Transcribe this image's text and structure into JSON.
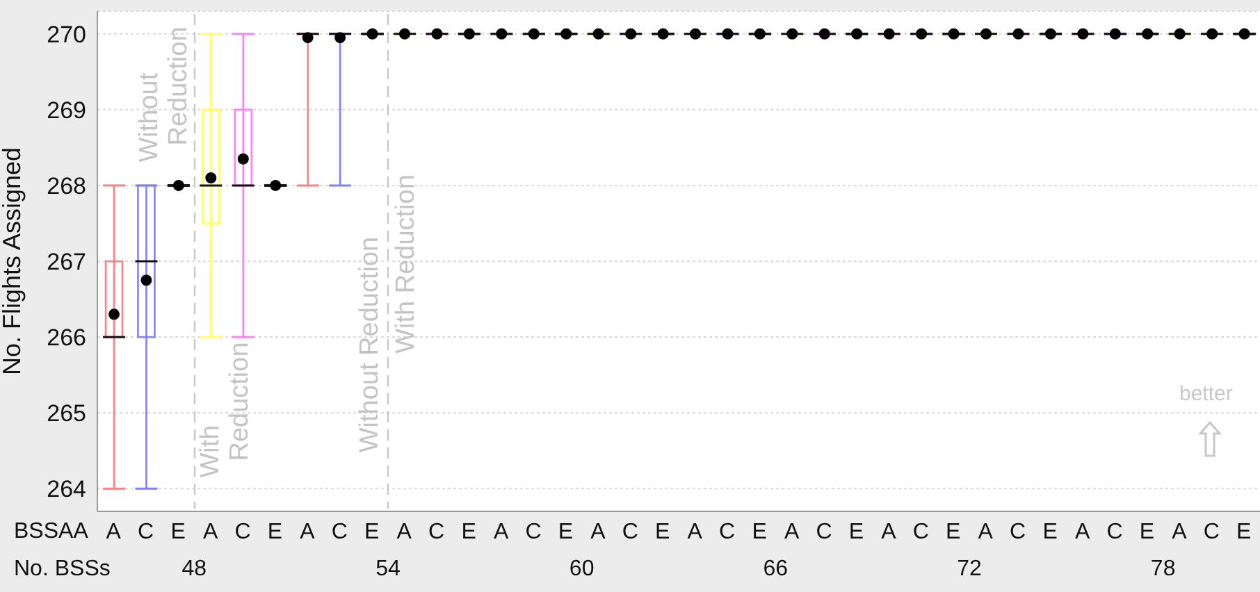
{
  "chart_data": {
    "type": "box",
    "ylabel": "No. Flights Assigned",
    "xlabel": "BSSAA",
    "categories": [
      "A",
      "C",
      "E",
      "A",
      "C",
      "E",
      "A",
      "C",
      "E",
      "A",
      "C",
      "E",
      "A",
      "C",
      "E",
      "A",
      "C",
      "E",
      "A",
      "C",
      "E",
      "A",
      "C",
      "E",
      "A",
      "C",
      "E",
      "A",
      "C",
      "E",
      "A",
      "C",
      "E",
      "A",
      "C",
      "E"
    ],
    "boxes": [
      {
        "low": 264,
        "q1": 266,
        "median": 266,
        "q3": 267,
        "high": 268,
        "mean": 266.3
      },
      {
        "low": 264,
        "q1": 266,
        "median": 267,
        "q3": 268,
        "high": 268,
        "mean": 266.75
      },
      {
        "low": 268,
        "q1": 268,
        "median": 268,
        "q3": 268,
        "high": 268,
        "mean": 268
      },
      {
        "low": 266,
        "q1": 267.5,
        "median": 268,
        "q3": 269,
        "high": 270,
        "mean": 268.1
      },
      {
        "low": 266,
        "q1": 268,
        "median": 268,
        "q3": 269,
        "high": 270,
        "mean": 268.35
      },
      {
        "low": 268,
        "q1": 268,
        "median": 268,
        "q3": 268,
        "high": 268,
        "mean": 268
      },
      {
        "low": 268,
        "q1": 270,
        "median": 270,
        "q3": 270,
        "high": 270,
        "mean": 269.95
      },
      {
        "low": 268,
        "q1": 270,
        "median": 270,
        "q3": 270,
        "high": 270,
        "mean": 269.95
      },
      {
        "low": 270,
        "q1": 270,
        "median": 270,
        "q3": 270,
        "high": 270,
        "mean": 270
      },
      {
        "low": 270,
        "q1": 270,
        "median": 270,
        "q3": 270,
        "high": 270,
        "mean": 270
      },
      {
        "low": 270,
        "q1": 270,
        "median": 270,
        "q3": 270,
        "high": 270,
        "mean": 270
      },
      {
        "low": 270,
        "q1": 270,
        "median": 270,
        "q3": 270,
        "high": 270,
        "mean": 270
      },
      {
        "low": 270,
        "q1": 270,
        "median": 270,
        "q3": 270,
        "high": 270,
        "mean": 270
      },
      {
        "low": 270,
        "q1": 270,
        "median": 270,
        "q3": 270,
        "high": 270,
        "mean": 270
      },
      {
        "low": 270,
        "q1": 270,
        "median": 270,
        "q3": 270,
        "high": 270,
        "mean": 270
      },
      {
        "low": 270,
        "q1": 270,
        "median": 270,
        "q3": 270,
        "high": 270,
        "mean": 270
      },
      {
        "low": 270,
        "q1": 270,
        "median": 270,
        "q3": 270,
        "high": 270,
        "mean": 270
      },
      {
        "low": 270,
        "q1": 270,
        "median": 270,
        "q3": 270,
        "high": 270,
        "mean": 270
      },
      {
        "low": 270,
        "q1": 270,
        "median": 270,
        "q3": 270,
        "high": 270,
        "mean": 270
      },
      {
        "low": 270,
        "q1": 270,
        "median": 270,
        "q3": 270,
        "high": 270,
        "mean": 270
      },
      {
        "low": 270,
        "q1": 270,
        "median": 270,
        "q3": 270,
        "high": 270,
        "mean": 270
      },
      {
        "low": 270,
        "q1": 270,
        "median": 270,
        "q3": 270,
        "high": 270,
        "mean": 270
      },
      {
        "low": 270,
        "q1": 270,
        "median": 270,
        "q3": 270,
        "high": 270,
        "mean": 270
      },
      {
        "low": 270,
        "q1": 270,
        "median": 270,
        "q3": 270,
        "high": 270,
        "mean": 270
      },
      {
        "low": 270,
        "q1": 270,
        "median": 270,
        "q3": 270,
        "high": 270,
        "mean": 270
      },
      {
        "low": 270,
        "q1": 270,
        "median": 270,
        "q3": 270,
        "high": 270,
        "mean": 270
      },
      {
        "low": 270,
        "q1": 270,
        "median": 270,
        "q3": 270,
        "high": 270,
        "mean": 270
      },
      {
        "low": 270,
        "q1": 270,
        "median": 270,
        "q3": 270,
        "high": 270,
        "mean": 270
      },
      {
        "low": 270,
        "q1": 270,
        "median": 270,
        "q3": 270,
        "high": 270,
        "mean": 270
      },
      {
        "low": 270,
        "q1": 270,
        "median": 270,
        "q3": 270,
        "high": 270,
        "mean": 270
      },
      {
        "low": 270,
        "q1": 270,
        "median": 270,
        "q3": 270,
        "high": 270,
        "mean": 270
      },
      {
        "low": 270,
        "q1": 270,
        "median": 270,
        "q3": 270,
        "high": 270,
        "mean": 270
      },
      {
        "low": 270,
        "q1": 270,
        "median": 270,
        "q3": 270,
        "high": 270,
        "mean": 270
      },
      {
        "low": 270,
        "q1": 270,
        "median": 270,
        "q3": 270,
        "high": 270,
        "mean": 270
      },
      {
        "low": 270,
        "q1": 270,
        "median": 270,
        "q3": 270,
        "high": 270,
        "mean": 270
      },
      {
        "low": 270,
        "q1": 270,
        "median": 270,
        "q3": 270,
        "high": 270,
        "mean": 270
      }
    ],
    "colors": [
      "#ff8080",
      "#8080ff",
      "#000000",
      "#ffff66",
      "#ff80ff",
      "#000000",
      "#ff8080",
      "#8080ff",
      "#000000",
      "#ffff66",
      "#ff80ff",
      "#000000",
      "#ff8080",
      "#8080ff",
      "#000000",
      "#ffff66",
      "#ff80ff",
      "#000000",
      "#ff8080",
      "#8080ff",
      "#000000",
      "#ffff66",
      "#ff80ff",
      "#000000",
      "#ff8080",
      "#8080ff",
      "#000000",
      "#ffff66",
      "#ff80ff",
      "#000000",
      "#ff8080",
      "#8080ff",
      "#000000",
      "#ffff66",
      "#ff80ff",
      "#000000"
    ],
    "ylim": [
      263.7,
      270.3
    ],
    "yticks": [
      264,
      265,
      266,
      267,
      268,
      269,
      270
    ],
    "grid": "y",
    "annotations": [
      "No. BSSs",
      "48",
      "54",
      "60",
      "66",
      "72",
      "78",
      "Without Reduction",
      "With Reduction",
      "Without Reduction",
      "With Reduction",
      "better"
    ]
  }
}
